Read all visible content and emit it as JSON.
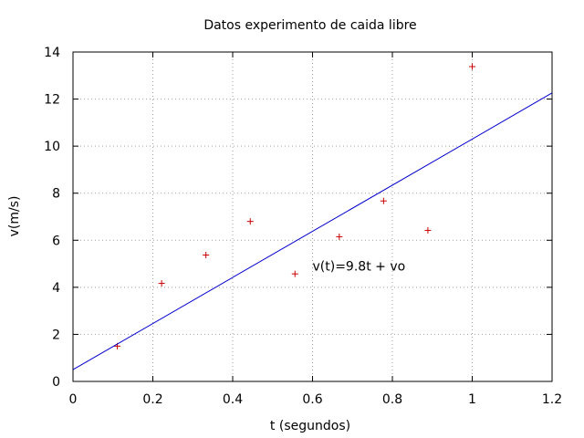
{
  "chart_data": {
    "type": "scatter",
    "title": "Datos experimento de caida libre",
    "xlabel": "t (segundos)",
    "ylabel": "v(m/s)",
    "xlim": [
      0,
      1.2
    ],
    "ylim": [
      0,
      14
    ],
    "x_ticks": [
      0,
      0.2,
      0.4,
      0.6,
      0.8,
      1,
      1.2
    ],
    "x_tick_labels": [
      "0",
      "0.2",
      "0.4",
      "0.6",
      "0.8",
      "1",
      "1.2"
    ],
    "y_ticks": [
      0,
      2,
      4,
      6,
      8,
      10,
      12,
      14
    ],
    "y_tick_labels": [
      "0",
      "2",
      "4",
      "6",
      "8",
      "10",
      "12",
      "14"
    ],
    "grid": true,
    "series": [
      {
        "type": "scatter",
        "marker": "+",
        "color": "#cc0000",
        "x": [
          0.111,
          0.222,
          0.333,
          0.444,
          0.556,
          0.667,
          0.778,
          0.889,
          1.0
        ],
        "y": [
          1.5,
          4.17,
          5.37,
          6.8,
          4.57,
          6.15,
          7.67,
          6.42,
          13.38
        ]
      },
      {
        "type": "line",
        "color": "#0000cc",
        "x": [
          0,
          1.2
        ],
        "y": [
          0.5,
          12.26
        ]
      }
    ],
    "annotations": [
      {
        "text": "v(t)=9.8t + vo",
        "x": 0.6,
        "y": 4.9
      }
    ]
  }
}
